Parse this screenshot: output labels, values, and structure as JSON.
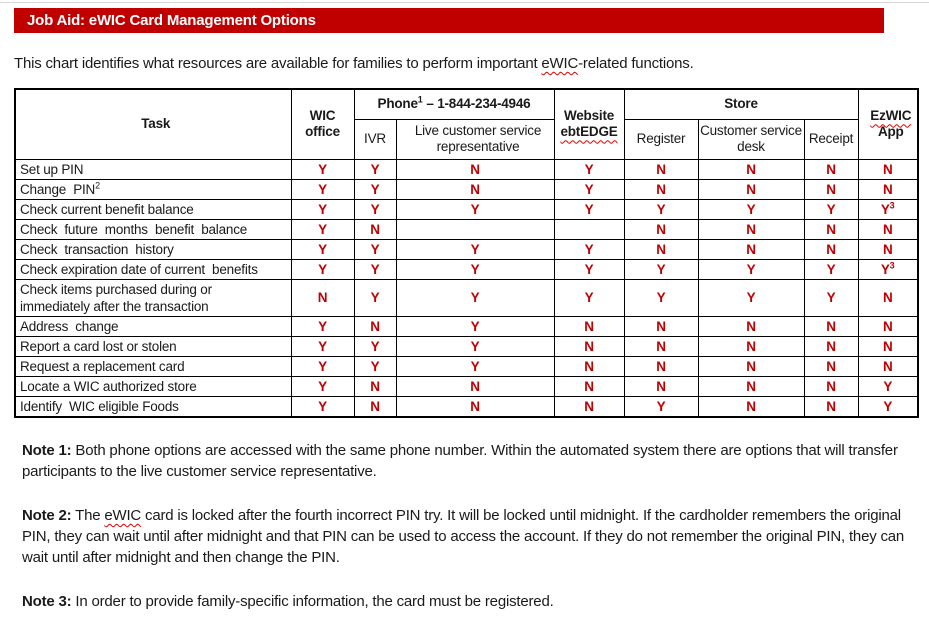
{
  "title_bar": {
    "title": "Job Aid: eWIC Card Management Options",
    "bg_color": "#c00000",
    "text_color": "#ffffff"
  },
  "intro": {
    "pre": "This chart identifies what resources are available for families to perform important ",
    "highlight": "eWIC",
    "post": "-related functions."
  },
  "table": {
    "value_color": "#c00000",
    "header": {
      "task": "Task",
      "wic_office": "WIC office",
      "phone_pre": "Phone",
      "phone_sup": "1",
      "phone_post": " – 1-844-234-4946",
      "ivr": "IVR",
      "live_rep": "Live customer service representative",
      "website_line1": "Website",
      "website_line2": "ebtEDGE",
      "store": "Store",
      "register": "Register",
      "customer_desk": "Customer service desk",
      "receipt": "Receipt",
      "ezwic_line1": "EzWIC",
      "ezwic_line2": "App"
    },
    "rows": [
      {
        "task": "Set up PIN",
        "values": [
          "Y",
          "Y",
          "N",
          "Y",
          "N",
          "N",
          "N",
          "N"
        ]
      },
      {
        "task": "Change  PIN",
        "task_sup": "2",
        "values": [
          "Y",
          "Y",
          "N",
          "Y",
          "N",
          "N",
          "N",
          "N"
        ]
      },
      {
        "task": "Check current benefit balance",
        "values": [
          "Y",
          "Y",
          "Y",
          "Y",
          "Y",
          "Y",
          "Y",
          "Y3"
        ]
      },
      {
        "task": "Check  future  months  benefit  balance",
        "values": [
          "Y",
          "N",
          "",
          "",
          "N",
          "N",
          "N",
          "N"
        ]
      },
      {
        "task": "Check  transaction  history",
        "values": [
          "Y",
          "Y",
          "Y",
          "Y",
          "N",
          "N",
          "N",
          "N"
        ]
      },
      {
        "task": "Check expiration date of current  benefits",
        "values": [
          "Y",
          "Y",
          "Y",
          "Y",
          "Y",
          "Y",
          "Y",
          "Y3"
        ]
      },
      {
        "task": "Check items purchased during or\nimmediately after the transaction",
        "values": [
          "N",
          "Y",
          "Y",
          "Y",
          "Y",
          "Y",
          "Y",
          "N"
        ]
      },
      {
        "task": "Address  change",
        "values": [
          "Y",
          "N",
          "Y",
          "N",
          "N",
          "N",
          "N",
          "N"
        ]
      },
      {
        "task": "Report a card lost or stolen",
        "values": [
          "Y",
          "Y",
          "Y",
          "N",
          "N",
          "N",
          "N",
          "N"
        ]
      },
      {
        "task": "Request a replacement card",
        "values": [
          "Y",
          "Y",
          "Y",
          "N",
          "N",
          "N",
          "N",
          "N"
        ]
      },
      {
        "task": "Locate a WIC authorized store",
        "values": [
          "Y",
          "N",
          "N",
          "N",
          "N",
          "N",
          "N",
          "Y"
        ]
      },
      {
        "task": "Identify  WIC eligible Foods",
        "values": [
          "Y",
          "N",
          "N",
          "N",
          "Y",
          "N",
          "N",
          "Y"
        ]
      }
    ]
  },
  "notes": {
    "note1_label": "Note 1:",
    "note1_text": " Both phone options are accessed with the same phone number. Within the automated system there are options that will transfer participants to the live customer service representative.",
    "note2_label": "Note 2:",
    "note2_pre": " The ",
    "note2_highlight": "eWIC",
    "note2_post": " card is locked after the fourth incorrect PIN try. It will be locked until midnight. If the cardholder remembers the original PIN, they can wait until after midnight and that PIN can be used to access the account. If they do not remember the original PIN, they can wait until after midnight and then change the PIN.",
    "note3_label": "Note 3:",
    "note3_text": " In order to provide family-specific information, the card must be registered."
  }
}
